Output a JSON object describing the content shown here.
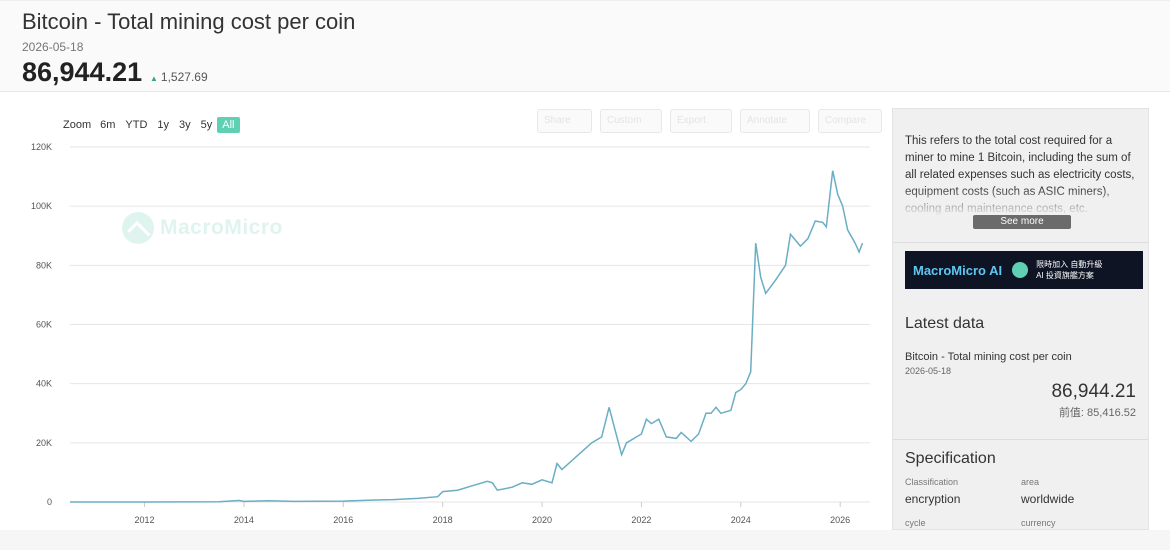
{
  "header": {
    "title": "Bitcoin - Total mining cost per coin",
    "date": "2026-05-18",
    "value": "86,944.21",
    "change": "1,527.69"
  },
  "zoom": {
    "label": "Zoom",
    "options": [
      "6m",
      "YTD",
      "1y",
      "3y",
      "5y",
      "All"
    ],
    "active": "All"
  },
  "toolbar": [
    "Share",
    "Custom",
    "Export",
    "Annotate",
    "Compare"
  ],
  "watermark": "MacroMicro",
  "sidebar": {
    "description": "This refers to the total cost required for a miner to mine 1 Bitcoin, including the sum of all related expenses such as electricity costs, equipment costs (such as ASIC miners), cooling and maintenance costs, etc.",
    "see_more": "See more",
    "banner": {
      "title": "MacroMicro AI",
      "cn_line1": "限時加入 自動升級",
      "cn_line2": "AI 投資旗艦方案"
    },
    "latest": {
      "heading": "Latest data",
      "name": "Bitcoin - Total mining cost per coin",
      "date": "2026-05-18",
      "value": "86,944.21",
      "previous": "前值: 85,416.52"
    },
    "spec": {
      "heading": "Specification",
      "classification_label": "Classification",
      "classification_value": "encryption",
      "area_label": "area",
      "area_value": "worldwide",
      "cycle_label": "cycle",
      "currency_label": "currency"
    }
  },
  "chart_data": {
    "type": "line",
    "ylim": [
      0,
      120000
    ],
    "xlim": [
      2010.5,
      2026.6
    ],
    "yticks": [
      0,
      20000,
      40000,
      60000,
      80000,
      100000,
      120000
    ],
    "ytick_labels": [
      "0",
      "20K",
      "40K",
      "60K",
      "80K",
      "100K",
      "120K"
    ],
    "xticks": [
      2012,
      2014,
      2016,
      2018,
      2020,
      2022,
      2024,
      2026
    ],
    "xtick_labels": [
      "2012",
      "2014",
      "2016",
      "2018",
      "2020",
      "2022",
      "2024",
      "2026"
    ],
    "grid": true,
    "series": [
      {
        "color": "#6aaec4",
        "points": [
          [
            2010.5,
            0
          ],
          [
            2012.0,
            0
          ],
          [
            2013.5,
            100
          ],
          [
            2013.9,
            500
          ],
          [
            2014.0,
            200
          ],
          [
            2014.5,
            400
          ],
          [
            2015.0,
            200
          ],
          [
            2016.0,
            300
          ],
          [
            2016.5,
            600
          ],
          [
            2017.0,
            800
          ],
          [
            2017.5,
            1200
          ],
          [
            2017.9,
            1800
          ],
          [
            2018.0,
            3500
          ],
          [
            2018.3,
            4000
          ],
          [
            2018.6,
            5500
          ],
          [
            2018.9,
            7000
          ],
          [
            2019.0,
            6500
          ],
          [
            2019.1,
            4000
          ],
          [
            2019.4,
            5000
          ],
          [
            2019.6,
            6500
          ],
          [
            2019.8,
            6000
          ],
          [
            2020.0,
            7500
          ],
          [
            2020.2,
            6500
          ],
          [
            2020.3,
            13000
          ],
          [
            2020.4,
            11000
          ],
          [
            2020.6,
            14000
          ],
          [
            2020.8,
            17000
          ],
          [
            2021.0,
            20000
          ],
          [
            2021.2,
            22000
          ],
          [
            2021.35,
            32000
          ],
          [
            2021.6,
            16000
          ],
          [
            2021.7,
            20000
          ],
          [
            2021.9,
            22000
          ],
          [
            2022.0,
            23000
          ],
          [
            2022.1,
            28000
          ],
          [
            2022.2,
            26500
          ],
          [
            2022.35,
            28000
          ],
          [
            2022.5,
            22000
          ],
          [
            2022.7,
            21500
          ],
          [
            2022.8,
            23500
          ],
          [
            2023.0,
            20500
          ],
          [
            2023.15,
            23000
          ],
          [
            2023.3,
            30000
          ],
          [
            2023.4,
            30000
          ],
          [
            2023.5,
            32000
          ],
          [
            2023.6,
            30000
          ],
          [
            2023.8,
            31000
          ],
          [
            2023.9,
            37000
          ],
          [
            2024.0,
            38000
          ],
          [
            2024.1,
            40000
          ],
          [
            2024.2,
            44000
          ],
          [
            2024.3,
            87500
          ],
          [
            2024.4,
            76000
          ],
          [
            2024.5,
            70500
          ],
          [
            2024.7,
            75000
          ],
          [
            2024.9,
            80000
          ],
          [
            2025.0,
            90500
          ],
          [
            2025.2,
            86500
          ],
          [
            2025.35,
            89000
          ],
          [
            2025.5,
            95000
          ],
          [
            2025.65,
            94500
          ],
          [
            2025.72,
            93000
          ],
          [
            2025.85,
            112000
          ],
          [
            2025.95,
            104000
          ],
          [
            2026.05,
            100000
          ],
          [
            2026.15,
            92000
          ],
          [
            2026.3,
            87500
          ],
          [
            2026.38,
            84500
          ],
          [
            2026.45,
            87500
          ]
        ]
      }
    ]
  }
}
